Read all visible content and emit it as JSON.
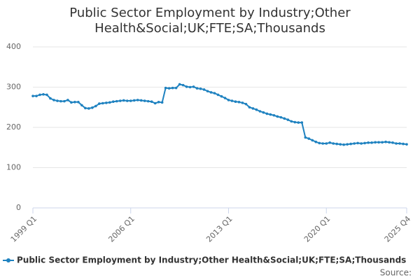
{
  "chart_data": {
    "type": "line",
    "title": "Public Sector Employment by Industry;Other Health&Social;UK;FTE;SA;Thousands",
    "source": "Source:",
    "categories": [
      "1999 Q1",
      null,
      null,
      null,
      null,
      null,
      null,
      null,
      null,
      null,
      null,
      null,
      null,
      null,
      null,
      null,
      null,
      null,
      null,
      null,
      null,
      null,
      null,
      null,
      null,
      null,
      null,
      null,
      "2006 Q1",
      null,
      null,
      null,
      null,
      null,
      null,
      null,
      null,
      null,
      null,
      null,
      null,
      null,
      null,
      null,
      null,
      null,
      null,
      null,
      null,
      null,
      null,
      null,
      null,
      null,
      null,
      null,
      "2013 Q1",
      null,
      null,
      null,
      null,
      null,
      null,
      null,
      null,
      null,
      null,
      null,
      null,
      null,
      null,
      null,
      null,
      null,
      null,
      null,
      null,
      null,
      null,
      null,
      null,
      null,
      null,
      null,
      "2020 Q1",
      null,
      null,
      null,
      null,
      null,
      null,
      null,
      null,
      null,
      null,
      null,
      null,
      null,
      null,
      null,
      null,
      null,
      null,
      null,
      null,
      null,
      null,
      "2025 Q4"
    ],
    "series": [
      {
        "name": "Public Sector Employment by Industry;Other Health&Social;UK;FTE;SA;Thousands",
        "color": "#1f82c0",
        "values": [
          278,
          278,
          281,
          282,
          281,
          272,
          268,
          266,
          265,
          265,
          268,
          262,
          263,
          263,
          255,
          248,
          247,
          249,
          253,
          259,
          260,
          261,
          262,
          264,
          265,
          266,
          267,
          266,
          266,
          267,
          268,
          267,
          266,
          265,
          264,
          260,
          263,
          262,
          298,
          297,
          298,
          298,
          307,
          305,
          301,
          300,
          301,
          297,
          296,
          294,
          290,
          287,
          285,
          281,
          277,
          273,
          268,
          266,
          264,
          263,
          261,
          258,
          250,
          247,
          244,
          240,
          237,
          234,
          232,
          230,
          227,
          225,
          222,
          219,
          215,
          213,
          212,
          212,
          175,
          172,
          168,
          164,
          161,
          160,
          160,
          162,
          160,
          159,
          158,
          157,
          158,
          159,
          160,
          161,
          160,
          161,
          162,
          162,
          163,
          163,
          163,
          164,
          163,
          162,
          160,
          160,
          159,
          158
        ]
      }
    ],
    "ylim": [
      0,
      400
    ],
    "yticks": [
      0,
      100,
      200,
      300,
      400
    ],
    "grid": true,
    "legend": "bottom"
  }
}
